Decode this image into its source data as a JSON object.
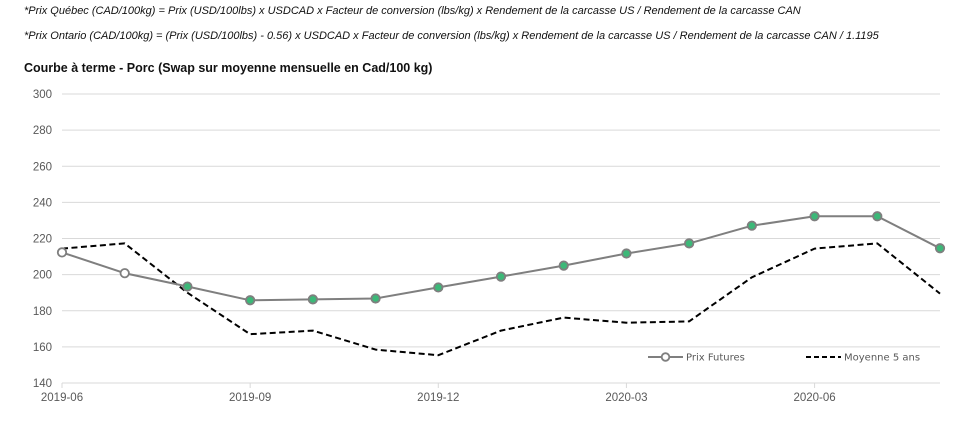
{
  "notes": {
    "quebec": "*Prix Québec (CAD/100kg) = Prix (USD/100lbs) x USDCAD x Facteur de conversion (lbs/kg) x Rendement de la carcasse US / Rendement de la carcasse CAN",
    "ontario": "*Prix Ontario (CAD/100kg) = (Prix (USD/100lbs) - 0.56) x USDCAD x Facteur de conversion (lbs/kg) x Rendement de la carcasse US / Rendement de la carcasse CAN / 1.1195"
  },
  "chart_data": {
    "type": "line",
    "title": "Courbe à terme - Porc (Swap sur moyenne mensuelle en Cad/100 kg)",
    "xlabel": "",
    "ylabel": "",
    "x": [
      "2019-06",
      "2019-07",
      "2019-08",
      "2019-09",
      "2019-10",
      "2019-11",
      "2019-12",
      "2020-01",
      "2020-02",
      "2020-03",
      "2020-04",
      "2020-05",
      "2020-06",
      "2020-07",
      "2020-08"
    ],
    "x_tick_labels": [
      "2019-06",
      "2019-09",
      "2019-12",
      "2020-03",
      "2020-06"
    ],
    "x_tick_indices": [
      0,
      3,
      6,
      9,
      12
    ],
    "ylim": [
      140,
      300
    ],
    "y_ticks": [
      140,
      160,
      180,
      200,
      220,
      240,
      260,
      280,
      300
    ],
    "grid": true,
    "legend_position": "bottom-right (inside plot)",
    "series": [
      {
        "name": "Prix Futures",
        "style": "solid line with circle markers",
        "color": "#7f7f7f",
        "marker_fill": "#3cb878",
        "hollow_marker_indices": [
          0,
          1
        ],
        "values": [
          212.3,
          200.8,
          193.4,
          185.8,
          186.3,
          186.8,
          192.9,
          198.9,
          205.0,
          211.7,
          217.3,
          227.1,
          232.3,
          232.3,
          214.6
        ]
      },
      {
        "name": "Moyenne 5 ans",
        "style": "dashed line",
        "color": "#000000",
        "values": [
          214.4,
          217.3,
          190.0,
          167.0,
          169.0,
          158.5,
          155.4,
          169.0,
          176.2,
          173.4,
          174.1,
          198.5,
          214.4,
          217.3,
          189.5
        ]
      }
    ]
  }
}
